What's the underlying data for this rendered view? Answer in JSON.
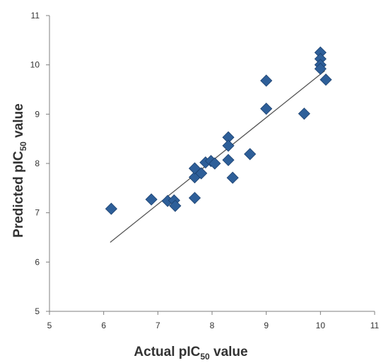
{
  "chart_data": {
    "type": "scatter",
    "title": "",
    "xlabel": {
      "prefix": "Actual pIC",
      "subscript": "50",
      "suffix": " value"
    },
    "ylabel": {
      "prefix": "Predicted pIC",
      "subscript": "50",
      "suffix": " value"
    },
    "xlim": [
      5,
      11
    ],
    "ylim": [
      5,
      11
    ],
    "x_ticks": [
      "5",
      "6",
      "7",
      "8",
      "9",
      "10",
      "11"
    ],
    "y_ticks": [
      "5",
      "6",
      "7",
      "8",
      "9",
      "10",
      "11"
    ],
    "grid": false,
    "marker": "diamond",
    "marker_color": "#2E5F99",
    "trendline": {
      "x": [
        6.12,
        10.08
      ],
      "y": [
        6.4,
        9.88
      ],
      "color": "#555555"
    },
    "series": [
      {
        "points": [
          [
            6.14,
            7.08
          ],
          [
            6.88,
            7.27
          ],
          [
            7.18,
            7.24
          ],
          [
            7.3,
            7.25
          ],
          [
            7.32,
            7.14
          ],
          [
            7.68,
            7.3
          ],
          [
            7.68,
            7.72
          ],
          [
            7.68,
            7.9
          ],
          [
            7.8,
            7.8
          ],
          [
            7.88,
            8.02
          ],
          [
            7.98,
            8.05
          ],
          [
            8.05,
            8.0
          ],
          [
            8.3,
            8.53
          ],
          [
            8.3,
            8.36
          ],
          [
            8.3,
            8.07
          ],
          [
            8.38,
            7.71
          ],
          [
            8.7,
            8.19
          ],
          [
            9.0,
            9.68
          ],
          [
            9.0,
            9.11
          ],
          [
            9.7,
            9.01
          ],
          [
            10.0,
            10.25
          ],
          [
            10.0,
            10.12
          ],
          [
            10.0,
            10.0
          ],
          [
            10.0,
            9.92
          ],
          [
            10.1,
            9.7
          ]
        ]
      }
    ]
  }
}
